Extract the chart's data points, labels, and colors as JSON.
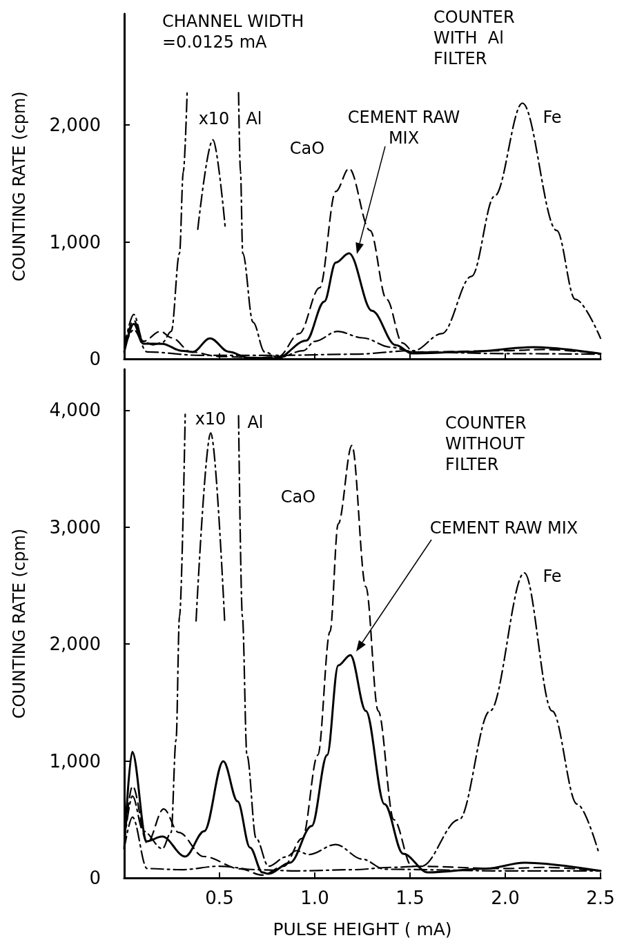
{
  "chart_data": [
    {
      "type": "line",
      "ylabel": "COUNTING RATE (cpm)",
      "xlim": [
        0,
        2.5
      ],
      "ylim": [
        0,
        2950
      ],
      "xticks": [
        0.5,
        1,
        1.5,
        2,
        2.5
      ],
      "yticks": [
        0,
        {
          "value": 1000,
          "label": "1,000"
        },
        {
          "value": 2000,
          "label": "2,000"
        }
      ],
      "tick_labels": "y",
      "annotations": [
        "CHANNEL WIDTH\n=0.0125 mA",
        "COUNTER\nWITH  Al\nFILTER",
        "x10",
        "Al",
        "CaO",
        "CEMENT RAW\nMIX",
        "Fe"
      ],
      "series": [
        {
          "color": "#000000",
          "line_style": "dashed",
          "x": [
            0,
            0.05,
            0.1,
            0.19,
            0.25,
            0.35,
            0.5,
            0.7,
            0.81,
            0.918,
            1.026,
            1.11,
            1.18,
            1.29,
            1.377,
            1.46,
            1.52,
            2.0,
            2.2,
            2.5
          ],
          "values": [
            100,
            330,
            150,
            235,
            180,
            60,
            20,
            10,
            20,
            216,
            608,
            1431,
            1627,
            1098,
            510,
            137,
            59,
            70,
            80,
            45
          ]
        },
        {
          "color": "#000000",
          "line_style": "solid",
          "x": [
            0,
            0.05,
            0.1,
            0.2,
            0.3,
            0.36,
            0.45,
            0.55,
            0.65,
            0.8,
            0.955,
            1.05,
            1.11,
            1.18,
            1.3,
            1.425,
            1.51,
            1.8,
            2.15,
            2.5
          ],
          "values": [
            60,
            300,
            130,
            129,
            70,
            59,
            176,
            60,
            10,
            5,
            157,
            490,
            823,
            902,
            412,
            118,
            47,
            60,
            100,
            45
          ]
        },
        {
          "color": "#000000",
          "line_style": "dashdot",
          "x": [
            0,
            0.05,
            0.12,
            0.4,
            0.8,
            1.2,
            1.52,
            1.667,
            1.823,
            1.944,
            2.09,
            2.27,
            2.367,
            2.5
          ],
          "values": [
            100,
            250,
            60,
            30,
            30,
            40,
            70,
            216,
            706,
            1392,
            2186,
            1098,
            510,
            176
          ]
        },
        {
          "color": "#000000",
          "line_style": "dashdot",
          "x": [
            0,
            0.05,
            0.1,
            0.15,
            0.2,
            0.247,
            0.29,
            0.31,
            0.33,
            0.46,
            0.6,
            0.61,
            0.622,
            0.676,
            0.737,
            0.81,
            0.94,
            1.0,
            1.12,
            1.25,
            1.4,
            1.52,
            2.0,
            2.5
          ],
          "values": [
            100,
            380,
            150,
            120,
            140,
            235,
            902,
            1600,
            2276,
            null,
            2276,
            1600,
            902,
            314,
            59,
            12,
            70,
            150,
            235,
            180,
            100,
            59,
            45,
            40
          ]
        },
        {
          "color": "#000000",
          "line_style": "dashdot",
          "x": [
            0.386,
            0.465,
            0.53
          ],
          "values": [
            1108,
            1872,
            1122
          ]
        }
      ]
    },
    {
      "type": "line",
      "xlabel": "PULSE HEIGHT ( mA)",
      "ylabel": "COUNTING RATE (cpm)",
      "xlim": [
        0,
        2.5
      ],
      "ylim": [
        0,
        4350
      ],
      "xticks": [
        0.5,
        {
          "value": 1,
          "label": "1.0"
        },
        1.5,
        {
          "value": 2,
          "label": "2.0"
        },
        2.5
      ],
      "yticks": [
        0,
        {
          "value": 1000,
          "label": "1,000"
        },
        {
          "value": 2000,
          "label": "2,000"
        },
        {
          "value": 3000,
          "label": "3,000"
        },
        {
          "value": 4000,
          "label": "4,000"
        }
      ],
      "annotations": [
        "COUNTER\nWITHOUT\nFILTER",
        "x10",
        "Al",
        "CaO",
        "CEMENT RAW MIX",
        "Fe"
      ],
      "series": [
        {
          "color": "#000000",
          "line_style": "dashed",
          "x": [
            0,
            0.043,
            0.12,
            0.207,
            0.286,
            0.417,
            0.61,
            0.725,
            0.837,
            0.935,
            1.016,
            1.08,
            1.123,
            1.195,
            1.268,
            1.333,
            1.415,
            1.51,
            2.0,
            2.2,
            2.5
          ],
          "values": [
            300,
            786,
            300,
            590,
            389,
            183,
            77,
            24,
            100,
            339,
            1050,
            2106,
            3028,
            3699,
            2490,
            1428,
            498,
            100,
            80,
            90,
            60
          ]
        },
        {
          "color": "#000000",
          "line_style": "solid",
          "x": [
            0,
            0.042,
            0.118,
            0.199,
            0.32,
            0.42,
            0.52,
            0.595,
            0.66,
            0.725,
            0.757,
            0.87,
            0.984,
            1.065,
            1.123,
            1.187,
            1.268,
            1.366,
            1.464,
            1.594,
            1.9,
            2.1,
            2.5
          ],
          "values": [
            250,
            1077,
            313,
            354,
            183,
            400,
            997,
            655,
            260,
            47,
            35,
            130,
            444,
            1050,
            1817,
            1905,
            1428,
            631,
            206,
            47,
            80,
            130,
            60
          ]
        },
        {
          "color": "#000000",
          "line_style": "dashdot",
          "x": [
            0,
            0.043,
            0.12,
            0.3,
            0.5,
            0.7,
            0.9,
            1.2,
            1.4,
            1.56,
            1.757,
            1.92,
            2.1,
            2.246,
            2.377,
            2.49
          ],
          "values": [
            250,
            520,
            80,
            70,
            100,
            70,
            60,
            70,
            90,
            100,
            498,
            1428,
            2609,
            1428,
            631,
            219
          ]
        },
        {
          "color": "#000000",
          "line_style": "dashdot",
          "x": [
            0,
            0.043,
            0.1,
            0.2,
            0.246,
            0.272,
            0.29,
            0.32,
            0.46,
            0.6,
            0.62,
            0.644,
            0.692,
            0.757,
            0.85,
            0.903,
            0.97,
            1.11,
            1.25,
            1.367,
            2.0,
            2.5
          ],
          "values": [
            300,
            700,
            400,
            250,
            389,
            1182,
            2236,
            3964,
            null,
            3953,
            2236,
            1050,
            339,
            100,
            180,
            233,
            200,
            286,
            160,
            74,
            60,
            60
          ]
        },
        {
          "color": "#000000",
          "line_style": "dashdot",
          "x": [
            0.377,
            0.454,
            0.527
          ],
          "values": [
            2197,
            3805,
            2197
          ]
        }
      ]
    }
  ]
}
